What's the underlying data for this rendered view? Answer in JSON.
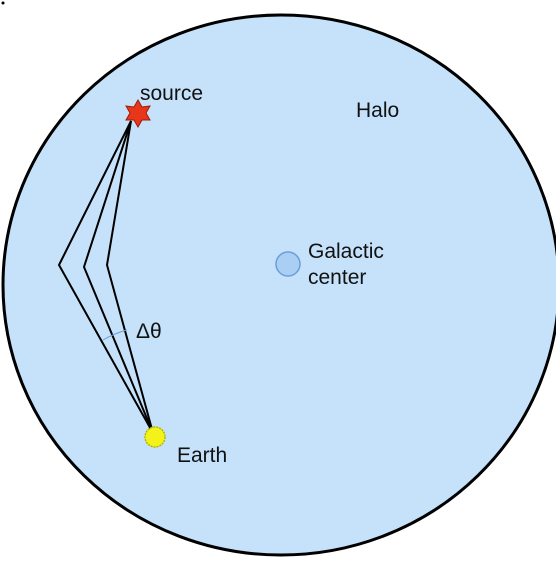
{
  "labels": {
    "source": "source",
    "halo": "Halo",
    "galactic_center": [
      "Galactic",
      "center"
    ],
    "angle": "Δθ",
    "earth": "Earth"
  }
}
